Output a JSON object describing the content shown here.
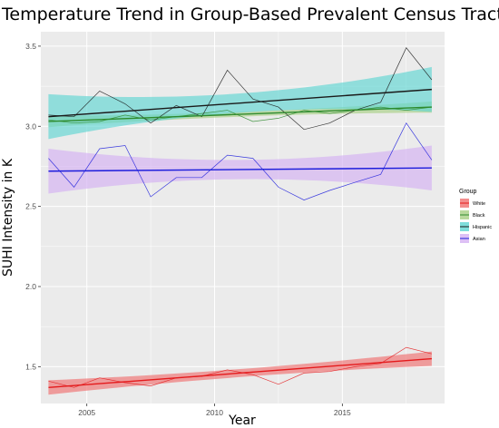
{
  "chart_data": {
    "type": "line",
    "title": "Temperature Trend in Group-Based Prevalent Census Tracts",
    "xlabel": "Year",
    "ylabel": "SUHI Intensity in K",
    "xlim": [
      2003.2,
      2019.0
    ],
    "ylim": [
      1.27,
      3.59
    ],
    "x_ticks": [
      2005,
      2010,
      2015
    ],
    "y_ticks": [
      1.5,
      2.0,
      2.5,
      3.0,
      3.5
    ],
    "x_tick_labels": [
      "2005",
      "2010",
      "2015"
    ],
    "y_tick_labels": [
      "1.5",
      "2.0",
      "2.5",
      "3.0",
      "3.5"
    ],
    "grid": true,
    "background": "#ebebeb",
    "legend": {
      "title": "Group",
      "placement": "right"
    },
    "years": [
      2003.5,
      2004.5,
      2005.5,
      2006.5,
      2007.5,
      2008.5,
      2009.5,
      2010.5,
      2011.5,
      2012.5,
      2013.5,
      2014.5,
      2015.5,
      2016.5,
      2017.5,
      2018.5
    ],
    "series": [
      {
        "name": "White",
        "color": "#f8766d",
        "fill": "#f07070",
        "line_color": "#e41a1c",
        "values": [
          1.41,
          1.37,
          1.43,
          1.4,
          1.38,
          1.43,
          1.44,
          1.48,
          1.45,
          1.39,
          1.46,
          1.47,
          1.5,
          1.52,
          1.62,
          1.58
        ],
        "trend": [
          1.37,
          1.55
        ],
        "band_width": [
          0.045,
          0.025,
          0.045
        ]
      },
      {
        "name": "Black",
        "color": "#7cae00",
        "fill": "#a8cf84",
        "line_color": "#2e8b2e",
        "values": [
          3.04,
          3.02,
          3.03,
          3.07,
          3.04,
          3.06,
          3.08,
          3.1,
          3.03,
          3.05,
          3.1,
          3.08,
          3.1,
          3.12,
          3.1,
          3.12
        ],
        "trend": [
          3.03,
          3.12
        ],
        "band_width": [
          0.035,
          0.015,
          0.035
        ]
      },
      {
        "name": "Hispanic",
        "color": "#00bfc4",
        "fill": "#5fd6d2",
        "line_color": "#1a1a1a",
        "values": [
          3.07,
          3.06,
          3.22,
          3.14,
          3.02,
          3.13,
          3.06,
          3.35,
          3.17,
          3.12,
          2.98,
          3.02,
          3.1,
          3.15,
          3.49,
          3.29
        ],
        "trend": [
          3.06,
          3.23
        ],
        "band_width": [
          0.14,
          0.06,
          0.14
        ]
      },
      {
        "name": "Asian",
        "color": "#c77cff",
        "fill": "#d4b0f2",
        "line_color": "#1c1cdc",
        "values": [
          2.8,
          2.62,
          2.86,
          2.88,
          2.56,
          2.68,
          2.68,
          2.82,
          2.8,
          2.62,
          2.54,
          2.6,
          2.65,
          2.7,
          3.02,
          2.79
        ],
        "trend": [
          2.72,
          2.74
        ],
        "band_width": [
          0.14,
          0.06,
          0.14
        ]
      }
    ]
  }
}
